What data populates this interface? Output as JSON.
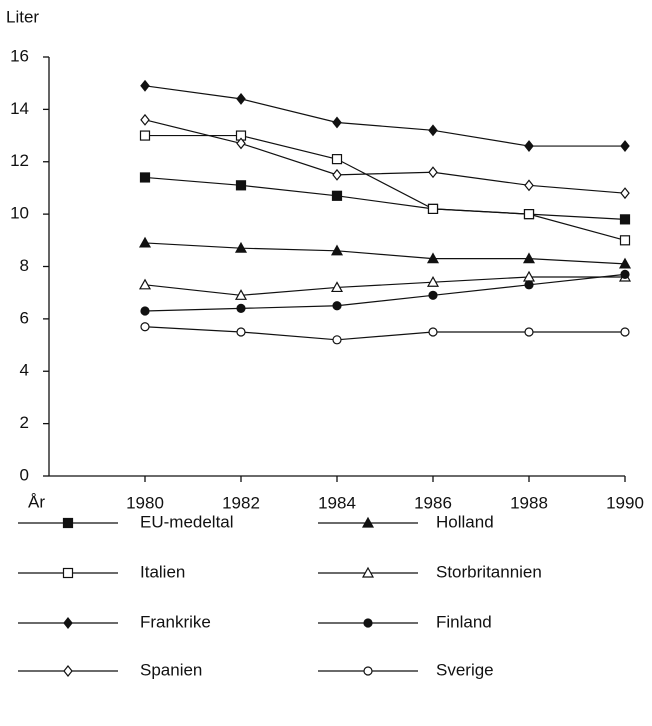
{
  "chart_data": {
    "type": "line",
    "y_label": "Liter",
    "x_label": "År",
    "x": [
      1980,
      1982,
      1984,
      1986,
      1988,
      1990
    ],
    "xlim": [
      1978,
      1990
    ],
    "xticks": [
      1980,
      1982,
      1984,
      1986,
      1988,
      1990
    ],
    "ylim": [
      0,
      16
    ],
    "yticks": [
      0,
      2,
      4,
      6,
      8,
      10,
      12,
      14,
      16
    ],
    "grid": false,
    "series": [
      {
        "name": "EU-medeltal",
        "color": "#111111",
        "marker": "square",
        "filled": true,
        "values": [
          11.4,
          11.1,
          10.7,
          10.2,
          10.0,
          9.8
        ]
      },
      {
        "name": "Holland",
        "color": "#111111",
        "marker": "triangle",
        "filled": true,
        "values": [
          8.9,
          8.7,
          8.6,
          8.3,
          8.3,
          8.1
        ]
      },
      {
        "name": "Italien",
        "color": "#111111",
        "marker": "square",
        "filled": false,
        "values": [
          13.0,
          13.0,
          12.1,
          10.2,
          10.0,
          9.0
        ]
      },
      {
        "name": "Storbritannien",
        "color": "#111111",
        "marker": "triangle",
        "filled": false,
        "values": [
          7.3,
          6.9,
          7.2,
          7.4,
          7.6,
          7.6
        ]
      },
      {
        "name": "Frankrike",
        "color": "#111111",
        "marker": "diamond",
        "filled": true,
        "values": [
          14.9,
          14.4,
          13.5,
          13.2,
          12.6,
          12.6
        ]
      },
      {
        "name": "Finland",
        "color": "#111111",
        "marker": "circle",
        "filled": true,
        "values": [
          6.3,
          6.4,
          6.5,
          6.9,
          7.3,
          7.7
        ]
      },
      {
        "name": "Spanien",
        "color": "#111111",
        "marker": "diamond",
        "filled": false,
        "values": [
          13.6,
          12.7,
          11.5,
          11.6,
          11.1,
          10.8
        ]
      },
      {
        "name": "Sverige",
        "color": "#111111",
        "marker": "circle",
        "filled": false,
        "values": [
          5.7,
          5.5,
          5.2,
          5.5,
          5.5,
          5.5
        ]
      }
    ]
  }
}
